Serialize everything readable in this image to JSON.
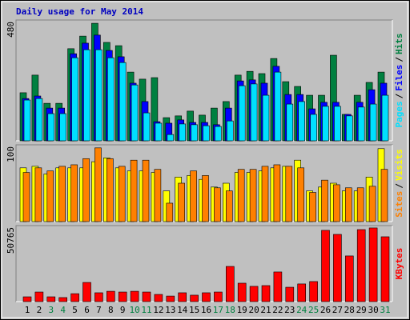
{
  "chart_data": [
    {
      "type": "bar",
      "title": "Daily usage for May 2014",
      "ylim": [
        0,
        480
      ],
      "yticks": [
        480
      ],
      "legend_separator": "/",
      "series": [
        {
          "name": "Hits",
          "color": "#008040",
          "values": [
            191,
            261,
            149,
            149,
            366,
            416,
            467,
            391,
            378,
            273,
            245,
            251,
            92,
            99,
            118,
            102,
            130,
            156,
            261,
            276,
            267,
            327,
            235,
            216,
            181,
            181,
            340,
            105,
            181,
            232,
            273
          ]
        },
        {
          "name": "Files",
          "color": "#0000ff",
          "values": [
            168,
            178,
            130,
            130,
            346,
            388,
            420,
            359,
            334,
            229,
            156,
            76,
            70,
            83,
            73,
            73,
            64,
            130,
            238,
            242,
            229,
            296,
            184,
            184,
            127,
            153,
            153,
            105,
            153,
            203,
            229
          ]
        },
        {
          "name": "Pages",
          "color": "#00e0ff",
          "values": [
            162,
            168,
            108,
            108,
            330,
            362,
            362,
            330,
            311,
            222,
            111,
            70,
            25,
            67,
            64,
            60,
            57,
            79,
            219,
            226,
            181,
            273,
            146,
            156,
            105,
            137,
            137,
            99,
            134,
            146,
            181
          ]
        }
      ]
    },
    {
      "type": "bar",
      "ylim": [
        0,
        100
      ],
      "yticks": [
        100
      ],
      "legend_separator": "/",
      "series": [
        {
          "name": "Visits",
          "color": "#ffff00",
          "values": [
            70,
            72,
            62,
            70,
            70,
            70,
            78,
            83,
            70,
            66,
            66,
            64,
            40,
            58,
            60,
            55,
            45,
            50,
            64,
            64,
            66,
            70,
            72,
            80,
            40,
            45,
            50,
            40,
            40,
            58,
            95
          ]
        },
        {
          "name": "Sites",
          "color": "#ff8000",
          "values": [
            64,
            70,
            66,
            72,
            74,
            82,
            96,
            82,
            72,
            80,
            80,
            68,
            24,
            50,
            66,
            60,
            44,
            40,
            68,
            68,
            72,
            74,
            72,
            70,
            38,
            54,
            48,
            44,
            44,
            46,
            68
          ]
        }
      ]
    },
    {
      "type": "bar",
      "ylim": [
        0,
        50765
      ],
      "yticks": [
        50765
      ],
      "categories": [
        "1",
        "2",
        "3",
        "4",
        "5",
        "6",
        "7",
        "8",
        "9",
        "10",
        "11",
        "12",
        "13",
        "14",
        "15",
        "16",
        "17",
        "18",
        "19",
        "20",
        "21",
        "22",
        "23",
        "24",
        "25",
        "26",
        "27",
        "28",
        "29",
        "30",
        "31"
      ],
      "category_colors": [
        "#000000",
        "#000000",
        "#008040",
        "#008040",
        "#000000",
        "#000000",
        "#000000",
        "#000000",
        "#000000",
        "#008040",
        "#008040",
        "#000000",
        "#000000",
        "#000000",
        "#000000",
        "#000000",
        "#008040",
        "#008040",
        "#000000",
        "#000000",
        "#000000",
        "#000000",
        "#000000",
        "#008040",
        "#008040",
        "#000000",
        "#000000",
        "#000000",
        "#000000",
        "#000000",
        "#008040"
      ],
      "series": [
        {
          "name": "KBytes",
          "color": "#ff0000",
          "values": [
            3200,
            6400,
            3200,
            2700,
            5300,
            12800,
            5900,
            6900,
            6400,
            6900,
            6400,
            4800,
            3700,
            5900,
            4300,
            5900,
            6400,
            23500,
            12300,
            10200,
            10700,
            19800,
            9600,
            11800,
            13400,
            47600,
            44900,
            30500,
            48100,
            49200,
            43300
          ]
        }
      ]
    }
  ]
}
